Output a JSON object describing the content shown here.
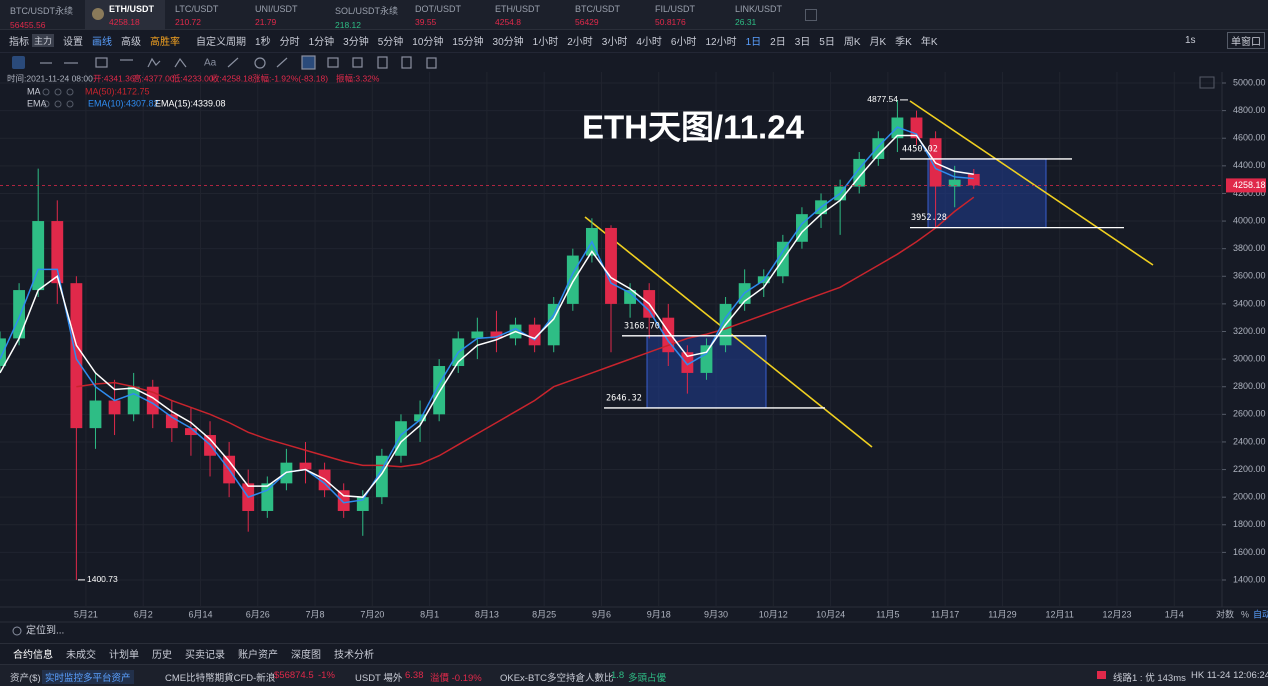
{
  "tabs": [
    {
      "name": "BTC/USDT永续",
      "price": 56455.56,
      "color": "#e0294a"
    },
    {
      "name": "ETH/USDT",
      "price": 4258.18,
      "color": "#e0294a"
    },
    {
      "name": "LTC/USDT",
      "price": 210.72,
      "color": "#e0294a"
    },
    {
      "name": "UNI/USDT",
      "price": 21.79,
      "color": "#e0294a"
    },
    {
      "name": "SOL/USDT永续",
      "price": 218.12,
      "color": "#2ebd85"
    },
    {
      "name": "DOT/USDT",
      "price": 39.55,
      "color": "#e0294a"
    },
    {
      "name": "ETH/USDT",
      "price": 4254.8,
      "color": "#e0294a"
    },
    {
      "name": "BTC/USDT",
      "price": 56429,
      "color": "#e0294a"
    },
    {
      "name": "FIL/USDT",
      "price": 50.8176,
      "color": "#e0294a"
    },
    {
      "name": "LINK/USDT",
      "price": 26.31,
      "color": "#2ebd85"
    }
  ],
  "toolbar": {
    "items": [
      "指标",
      "主力",
      "设置",
      "画线",
      "高级",
      "高胜率",
      "自定义周期",
      "1秒",
      "分时",
      "1分钟",
      "3分钟",
      "5分钟",
      "10分钟",
      "15分钟",
      "30分钟",
      "1小时",
      "2小时",
      "3小时",
      "4小时",
      "6小时",
      "12小时",
      "1日",
      "2日",
      "3日",
      "5日",
      "周K",
      "月K",
      "季K",
      "年K"
    ],
    "right": [
      "1s",
      "单窗口"
    ]
  },
  "info": [
    "时间:2021-11-24 08:00",
    "开:4341.36",
    "高:4377.00",
    "低:4233.00",
    "收:4258.18",
    "涨幅:-1.92%(-83.18)",
    "振幅:3.32%"
  ],
  "indicators": [
    "MA",
    "EMA"
  ],
  "chart_data": {
    "type": "candlestick",
    "title": "ETH天图/11.24",
    "x": [
      123,
      127,
      131,
      135,
      139,
      143,
      147,
      151,
      155,
      159,
      163,
      167,
      171,
      175,
      179,
      183,
      187,
      191,
      195,
      199,
      203,
      207,
      211,
      215,
      219,
      223,
      227,
      231,
      235,
      239,
      243,
      247,
      251,
      255,
      259,
      263,
      267,
      271,
      275,
      279,
      283,
      287,
      291,
      295,
      299,
      303,
      307,
      311,
      315,
      319,
      323,
      327
    ],
    "open": [
      2950,
      3150,
      3500,
      4000,
      3550,
      2500,
      2700,
      2600,
      2800,
      2600,
      2500,
      2450,
      2300,
      2100,
      1900,
      2100,
      2250,
      2200,
      2050,
      1900,
      2000,
      2300,
      2550,
      2600,
      2950,
      3150,
      3200,
      3150,
      3250,
      3100,
      3400,
      3750,
      3950,
      3400,
      3500,
      3300,
      3050,
      2900,
      3100,
      3400,
      3550,
      3600,
      3850,
      4050,
      4150,
      4250,
      4450,
      4600,
      4750,
      4600,
      4250,
      4341.36
    ],
    "high": [
      3200,
      3550,
      4380,
      4150,
      3600,
      2900,
      2850,
      2900,
      2850,
      2700,
      2650,
      2550,
      2400,
      2200,
      2150,
      2350,
      2400,
      2250,
      2100,
      2050,
      2350,
      2600,
      2700,
      3000,
      3200,
      3300,
      3350,
      3300,
      3300,
      3450,
      3800,
      4020,
      3970,
      3550,
      3550,
      3400,
      3100,
      3150,
      3450,
      3650,
      3650,
      3900,
      4100,
      4200,
      4300,
      4500,
      4650,
      4877.54,
      4800,
      4650,
      4400,
      4377
    ],
    "low": [
      2900,
      3100,
      3450,
      3400,
      1400.73,
      2350,
      2450,
      2550,
      2500,
      2400,
      2300,
      2150,
      2000,
      1750,
      1850,
      2050,
      2100,
      2000,
      1850,
      1720,
      1950,
      2250,
      2400,
      2550,
      2900,
      3000,
      3050,
      3100,
      3050,
      3050,
      3350,
      3700,
      3050,
      3300,
      3150,
      2950,
      2750,
      2850,
      3050,
      3350,
      3450,
      3550,
      3800,
      3950,
      3900,
      4200,
      4400,
      4500,
      4550,
      3952.28,
      4100,
      4233
    ],
    "close": [
      3150,
      3500,
      4000,
      3550,
      2500,
      2700,
      2600,
      2800,
      2600,
      2500,
      2450,
      2300,
      2100,
      1900,
      2100,
      2250,
      2200,
      2050,
      1900,
      2000,
      2300,
      2550,
      2600,
      2950,
      3150,
      3200,
      3150,
      3250,
      3100,
      3400,
      3750,
      3950,
      3400,
      3500,
      3300,
      3050,
      2900,
      3100,
      3400,
      3550,
      3600,
      3850,
      4050,
      4150,
      4250,
      4450,
      4600,
      4750,
      4600,
      4250,
      4300,
      4258.18
    ],
    "up_color": "#2ebd85",
    "down_color": "#e0294a",
    "series": [
      {
        "name": "MA(50):4172.75",
        "color": "#c8242d",
        "values": [
          null,
          null,
          null,
          null,
          2800,
          2820,
          2830,
          2800,
          2760,
          2700,
          2650,
          2600,
          2540,
          2470,
          2420,
          2380,
          2340,
          2300,
          2260,
          2230,
          2230,
          2220,
          2240,
          2300,
          2380,
          2460,
          2540,
          2620,
          2700,
          2800,
          2850,
          2900,
          2950,
          3000,
          3050,
          3100,
          3150,
          3180,
          3220,
          3270,
          3320,
          3370,
          3420,
          3470,
          3520,
          3600,
          3680,
          3760,
          3850,
          3950,
          4070,
          4172.75
        ]
      },
      {
        "name": "EMA(10):4307.82",
        "color": "#2f8cf0",
        "values": [
          3000,
          3300,
          3650,
          3650,
          3000,
          2800,
          2700,
          2750,
          2680,
          2580,
          2500,
          2380,
          2200,
          2000,
          2050,
          2180,
          2200,
          2100,
          1960,
          1980,
          2200,
          2450,
          2560,
          2820,
          3050,
          3150,
          3160,
          3220,
          3140,
          3320,
          3620,
          3850,
          3550,
          3480,
          3350,
          3130,
          2960,
          3040,
          3300,
          3480,
          3570,
          3780,
          3980,
          4100,
          4200,
          4380,
          4540,
          4680,
          4630,
          4380,
          4320,
          4307.82
        ]
      },
      {
        "name": "EMA(15):4339.08",
        "color": "#ffffff",
        "values": [
          2900,
          3150,
          3500,
          3600,
          3100,
          2900,
          2780,
          2790,
          2720,
          2620,
          2540,
          2420,
          2260,
          2080,
          2080,
          2180,
          2200,
          2130,
          2010,
          2000,
          2170,
          2400,
          2520,
          2760,
          2980,
          3100,
          3140,
          3200,
          3150,
          3290,
          3560,
          3780,
          3590,
          3510,
          3400,
          3200,
          3020,
          3050,
          3250,
          3420,
          3520,
          3720,
          3920,
          4050,
          4150,
          4320,
          4480,
          4620,
          4620,
          4420,
          4360,
          4339.08
        ]
      }
    ],
    "xlim": [
      123,
      379
    ],
    "xticks": [
      {
        "value": 141,
        "label": "5月21"
      },
      {
        "value": 153,
        "label": "6月2"
      },
      {
        "value": 165,
        "label": "6月14"
      },
      {
        "value": 177,
        "label": "6月26"
      },
      {
        "value": 189,
        "label": "7月8"
      },
      {
        "value": 201,
        "label": "7月20"
      },
      {
        "value": 213,
        "label": "8月1"
      },
      {
        "value": 225,
        "label": "8月13"
      },
      {
        "value": 237,
        "label": "8月25"
      },
      {
        "value": 249,
        "label": "9月6"
      },
      {
        "value": 261,
        "label": "9月18"
      },
      {
        "value": 273,
        "label": "9月30"
      },
      {
        "value": 285,
        "label": "10月12"
      },
      {
        "value": 297,
        "label": "10月24"
      },
      {
        "value": 309,
        "label": "11月5"
      },
      {
        "value": 321,
        "label": "11月17"
      },
      {
        "value": 333,
        "label": "11月29"
      },
      {
        "value": 345,
        "label": "12月11"
      },
      {
        "value": 357,
        "label": "12月23"
      },
      {
        "value": 369,
        "label": "1月4"
      }
    ],
    "ylim": [
      1400,
      5000
    ],
    "yticks": [
      {
        "value": 1400,
        "label": "1400.00"
      },
      {
        "value": 1600,
        "label": "1600.00"
      },
      {
        "value": 1800,
        "label": "1800.00"
      },
      {
        "value": 2000,
        "label": "2000.00"
      },
      {
        "value": 2200,
        "label": "2200.00"
      },
      {
        "value": 2400,
        "label": "2400.00"
      },
      {
        "value": 2600,
        "label": "2600.00"
      },
      {
        "value": 2800,
        "label": "2800.00"
      },
      {
        "value": 3000,
        "label": "3000.00"
      },
      {
        "value": 3200,
        "label": "3200.00"
      },
      {
        "value": 3400,
        "label": "3400.00"
      },
      {
        "value": 3600,
        "label": "3600.00"
      },
      {
        "value": 3800,
        "label": "3800.00"
      },
      {
        "value": 4000,
        "label": "4000.00"
      },
      {
        "value": 4200,
        "label": "4200.00"
      },
      {
        "value": 4400,
        "label": "4400.00"
      },
      {
        "value": 4600,
        "label": "4600.00"
      },
      {
        "value": 4800,
        "label": "4800.00"
      },
      {
        "value": 5000,
        "label": "5000.00"
      }
    ],
    "grid": true,
    "last_price": 4258.18,
    "annotations": [
      {
        "value": 4877.54,
        "label": "4877.54"
      },
      {
        "value": 4450.02,
        "label": "4450.02"
      },
      {
        "value": 3952.28,
        "label": "3952.28"
      },
      {
        "value": 3168.7,
        "label": "3168.70"
      },
      {
        "value": 2646.32,
        "label": "2646.32"
      },
      {
        "value": 1400.73,
        "label": "1400.73"
      }
    ],
    "axis_options": [
      "对数",
      "%",
      "自动"
    ]
  },
  "locate": "定位到...",
  "bottom_tabs": [
    "合约信息",
    "未成交",
    "计划单",
    "历史",
    "买卖记录",
    "账户资产",
    "深度图",
    "技术分析"
  ],
  "status": [
    "资产($)",
    "实时监控多平台资产",
    "CME比特幣期貨CFD-新浪",
    "$56874.5",
    "-1%",
    "USDT 場外",
    "6.38",
    "溢價 -0.19%",
    "OKEx-BTC多空持倉人數比",
    "1.8",
    "多頭占優",
    "线路1 : 优 143ms",
    "HK 11-24 12:06:24"
  ]
}
